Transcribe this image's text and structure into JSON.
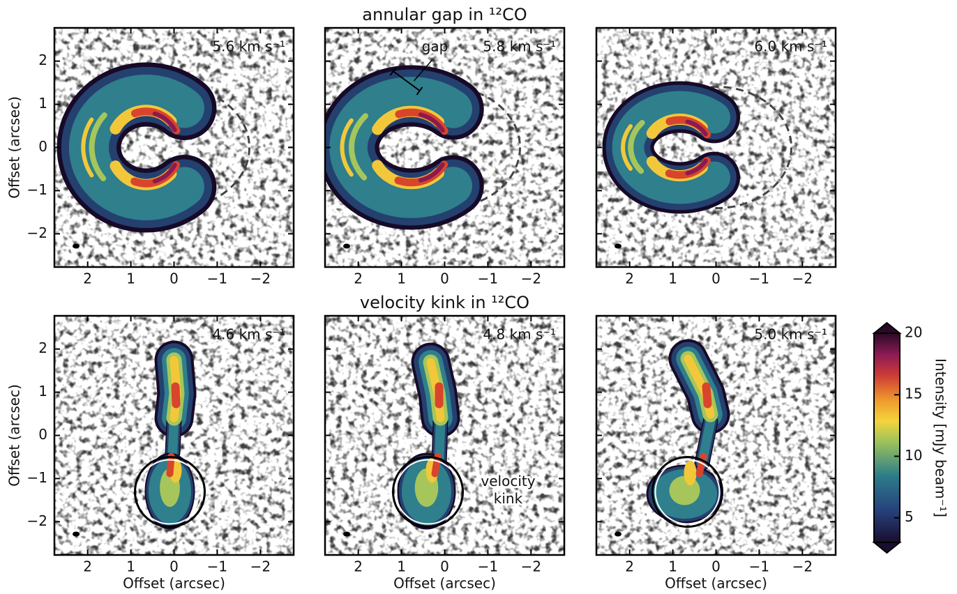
{
  "chart_data": [
    {
      "type": "image",
      "annotation": "5.6 km s⁻¹",
      "ylabel": "Offset (arcsec)",
      "xlim": [
        2.77,
        -2.77
      ],
      "ylim": [
        -2.77,
        2.77
      ],
      "xticks": [
        2,
        1,
        0,
        {
          "value": -1,
          "label": "−1"
        },
        {
          "value": -2,
          "label": "−2"
        }
      ],
      "yticks": [
        {
          "value": -2,
          "label": "−2"
        },
        {
          "value": -1,
          "label": "−1"
        },
        0,
        1,
        2
      ],
      "ytick_labels": true
    },
    {
      "type": "image",
      "title": "annular gap in ¹²CO",
      "annotation": "5.8 km s⁻¹",
      "notes": [
        "gap"
      ],
      "xlim": [
        2.77,
        -2.77
      ],
      "ylim": [
        -2.77,
        2.77
      ],
      "xticks": [
        2,
        1,
        0,
        {
          "value": -1,
          "label": "−1"
        },
        {
          "value": -2,
          "label": "−2"
        }
      ],
      "yticks": [
        {
          "value": -2,
          "label": "−2"
        },
        {
          "value": -1,
          "label": "−1"
        },
        0,
        1,
        2
      ],
      "ytick_labels": false
    },
    {
      "type": "image",
      "annotation": "6.0 km s⁻¹",
      "xlim": [
        2.77,
        -2.77
      ],
      "ylim": [
        -2.77,
        2.77
      ],
      "xticks": [
        2,
        1,
        0,
        {
          "value": -1,
          "label": "−1"
        },
        {
          "value": -2,
          "label": "−2"
        }
      ],
      "yticks": [
        {
          "value": -2,
          "label": "−2"
        },
        {
          "value": -1,
          "label": "−1"
        },
        0,
        1,
        2
      ],
      "ytick_labels": false
    },
    {
      "type": "image",
      "annotation": "4.6 km s⁻¹",
      "ylabel": "Offset (arcsec)",
      "xlabel": "Offset (arcsec)",
      "xlim": [
        2.77,
        -2.77
      ],
      "ylim": [
        -2.77,
        2.77
      ],
      "xticks": [
        2,
        1,
        0,
        {
          "value": -1,
          "label": "−1"
        },
        {
          "value": -2,
          "label": "−2"
        }
      ],
      "yticks": [
        {
          "value": -2,
          "label": "−2"
        },
        {
          "value": -1,
          "label": "−1"
        },
        0,
        1,
        2
      ],
      "ytick_labels": true
    },
    {
      "type": "image",
      "title": "velocity kink in ¹²CO",
      "annotation": "4.8 km s⁻¹",
      "xlabel": "Offset (arcsec)",
      "notes": [
        "velocity",
        "kink"
      ],
      "xlim": [
        2.77,
        -2.77
      ],
      "ylim": [
        -2.77,
        2.77
      ],
      "xticks": [
        2,
        1,
        0,
        {
          "value": -1,
          "label": "−1"
        },
        {
          "value": -2,
          "label": "−2"
        }
      ],
      "yticks": [
        {
          "value": -2,
          "label": "−2"
        },
        {
          "value": -1,
          "label": "−1"
        },
        0,
        1,
        2
      ],
      "ytick_labels": false
    },
    {
      "type": "image",
      "annotation": "5.0 km s⁻¹",
      "xlabel": "Offset (arcsec)",
      "xlim": [
        2.77,
        -2.77
      ],
      "ylim": [
        -2.77,
        2.77
      ],
      "xticks": [
        2,
        1,
        0,
        {
          "value": -1,
          "label": "−1"
        },
        {
          "value": -2,
          "label": "−2"
        }
      ],
      "yticks": [
        {
          "value": -2,
          "label": "−2"
        },
        {
          "value": -1,
          "label": "−1"
        },
        0,
        1,
        2
      ],
      "ytick_labels": false
    },
    {
      "type": "colorbar",
      "label": "Intensity [mJy beam⁻¹]",
      "ylim": [
        3,
        20
      ],
      "yticks": [
        5,
        10,
        15,
        20
      ]
    }
  ]
}
